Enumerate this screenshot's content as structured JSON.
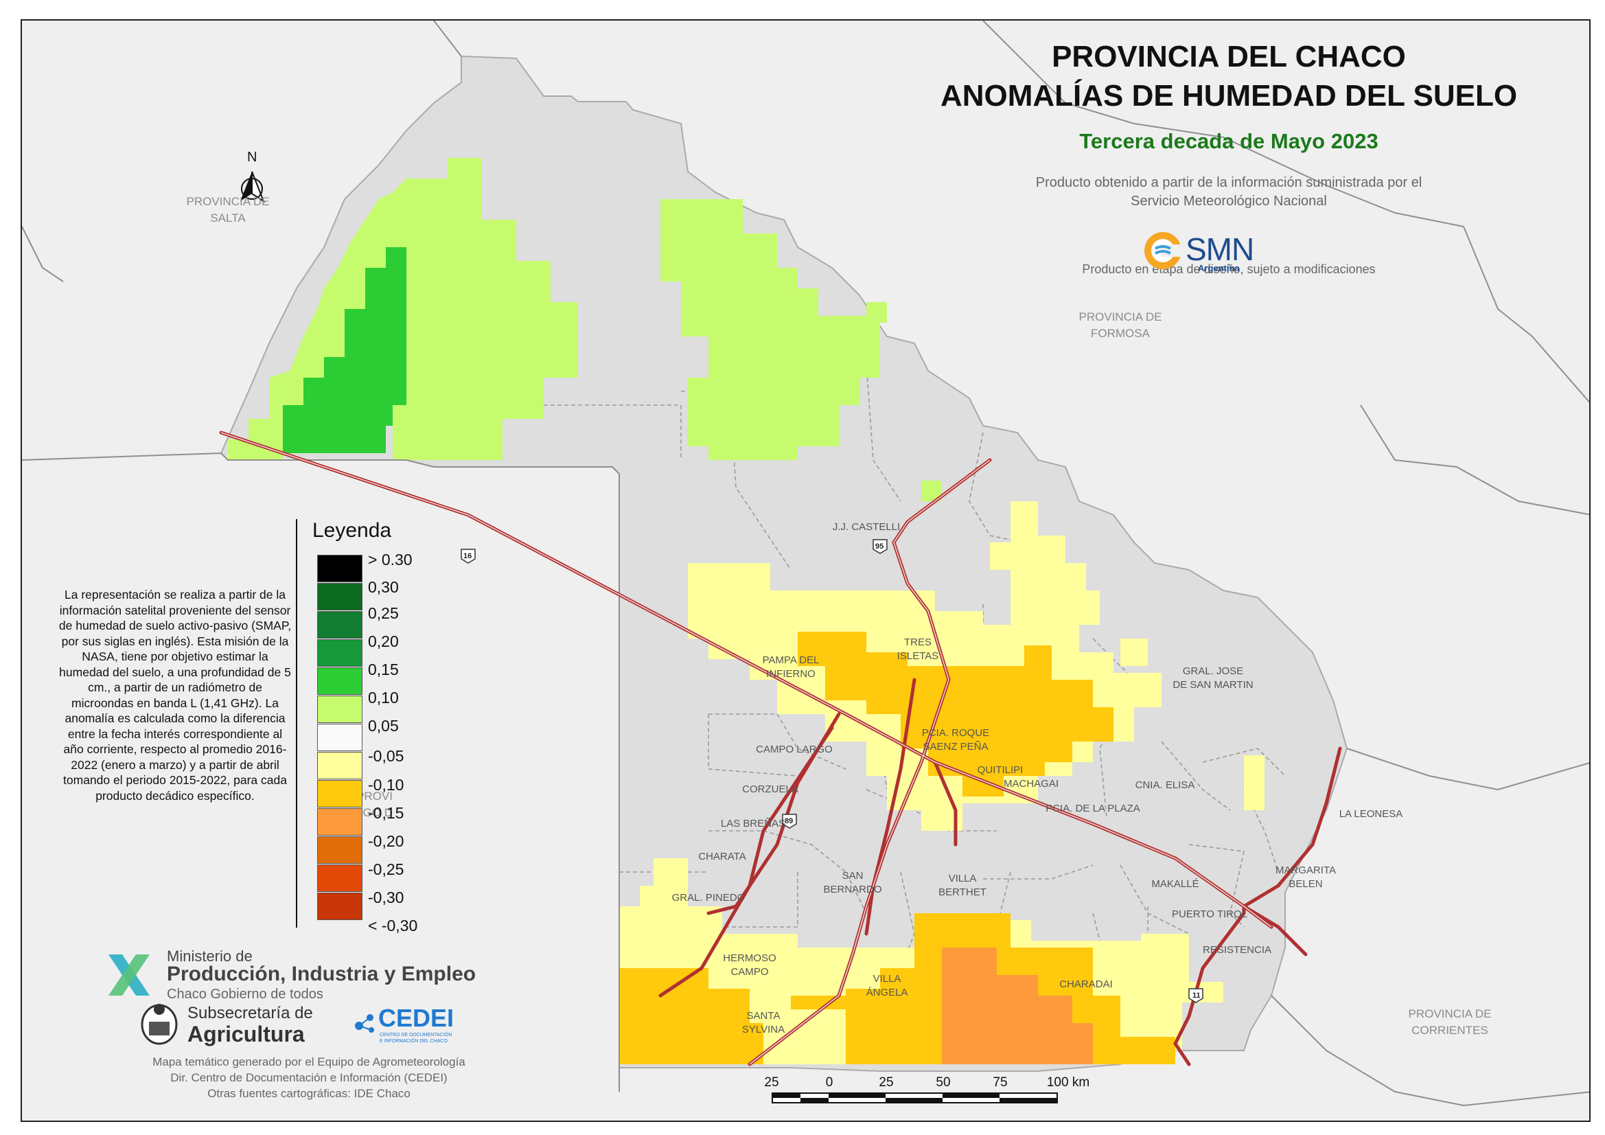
{
  "title": {
    "line1": "PROVINCIA DEL CHACO",
    "line2": "ANOMALÍAS DE HUMEDAD DEL SUELO",
    "subtitle": "Tercera decada de Mayo 2023"
  },
  "source": {
    "line1": "Producto obtenido a partir de la información suministrada por el",
    "line2": "Servicio Meteorológico Nacional",
    "disclaimer": "Producto en etapa de diseño, sujeto a modificaciones"
  },
  "smn_logo": {
    "name": "SMN",
    "country": "Argentina"
  },
  "north_arrow": "N",
  "neighbor_provinces": [
    {
      "line1": "PROVINCIA DE",
      "line2": "SALTA"
    },
    {
      "line1": "PROVINCIA DE",
      "line2": "FORMOSA"
    },
    {
      "line1": "PROVINCIA DE",
      "line2": "CORRIENTES"
    },
    {
      "line1": "PROVI",
      "line2": "STIAGO D"
    }
  ],
  "localities": [
    {
      "line1": "J.J. CASTELLI",
      "line2": ""
    },
    {
      "line1": "TRES",
      "line2": "ISLETAS"
    },
    {
      "line1": "PAMPA DEL",
      "line2": "INFIERNO"
    },
    {
      "line1": "GRAL. JOSE",
      "line2": "DE SAN MARTIN"
    },
    {
      "line1": "PCIA. ROQUE",
      "line2": "SAENZ PEÑA"
    },
    {
      "line1": "CAMPO LARGO",
      "line2": ""
    },
    {
      "line1": "QUITILIPI",
      "line2": ""
    },
    {
      "line1": "MACHAGAI",
      "line2": ""
    },
    {
      "line1": "CNIA. ELISA",
      "line2": ""
    },
    {
      "line1": "CORZUELA",
      "line2": ""
    },
    {
      "line1": "PCIA. DE LA PLAZA",
      "line2": ""
    },
    {
      "line1": "LAS BREÑAS",
      "line2": ""
    },
    {
      "line1": "LA LEONESA",
      "line2": ""
    },
    {
      "line1": "CHARATA",
      "line2": ""
    },
    {
      "line1": "SAN",
      "line2": "BERNARDO"
    },
    {
      "line1": "VILLA",
      "line2": "BERTHET"
    },
    {
      "line1": "MARGARITA",
      "line2": "BELEN"
    },
    {
      "line1": "MAKALLÉ",
      "line2": ""
    },
    {
      "line1": "GRAL. PINEDO",
      "line2": ""
    },
    {
      "line1": "PUERTO TIROL",
      "line2": ""
    },
    {
      "line1": "RESISTENCIA",
      "line2": ""
    },
    {
      "line1": "HERMOSO",
      "line2": "CAMPO"
    },
    {
      "line1": "VILLA",
      "line2": "ÁNGELA"
    },
    {
      "line1": "CHARADAI",
      "line2": ""
    },
    {
      "line1": "SANTA",
      "line2": "SYLVINA"
    }
  ],
  "routes": [
    "16",
    "95",
    "89",
    "11"
  ],
  "legend": {
    "title": "Leyenda",
    "classes": [
      {
        "label": "> 0.30",
        "color": "#000000"
      },
      {
        "label": "0,30",
        "color": "#0b6b1f"
      },
      {
        "label": "0,25",
        "color": "#127c30"
      },
      {
        "label": "0,20",
        "color": "#16993a"
      },
      {
        "label": "0,15",
        "color": "#2ccc34"
      },
      {
        "label": "0,10",
        "color": "#c6fb6e"
      },
      {
        "label": "0,05",
        "color": "#fafafa"
      },
      {
        "label": "-0,05",
        "color": "#ffff9e"
      },
      {
        "label": "-0,10",
        "color": "#ffc90d"
      },
      {
        "label": "-0,15",
        "color": "#fd9a3c"
      },
      {
        "label": "-0,20",
        "color": "#e06d0a"
      },
      {
        "label": "-0,25",
        "color": "#e34a07"
      },
      {
        "label": "-0,30",
        "color": "#c93607"
      }
    ],
    "last_label": "< -0,30"
  },
  "notes": "La representación se realiza a partir de la información satelital proveniente del sensor de humedad de suelo activo-pasivo (SMAP, por sus siglas en inglés). Esta misión de la NASA, tiene por objetivo estimar la humedad del suelo, a una profundidad de 5 cm., a partir de un radiómetro de microondas en banda L (1,41 GHz). La anomalía es calculada como la diferencia entre la fecha interés correspondiente al año corriente, respecto al promedio 2016- 2022 (enero a marzo) y a partir de abril tomando el periodo 2015-2022, para cada producto decádico específico.",
  "logos": {
    "ministry_line1": "Ministerio de",
    "ministry_line2": "Producción, Industria y Empleo",
    "ministry_line3": "Chaco Gobierno de todos",
    "subsecretaria_line1": "Subsecretaría de",
    "subsecretaria_line2": "Agricultura",
    "cedei": "CEDEI",
    "cedei_sub1": "CENTRO DE DOCUMENTACIÓN",
    "cedei_sub2": "E INFORMACIÓN DEL CHACO"
  },
  "credits": {
    "line1": "Mapa temático generado por el Equipo de Agrometeorología",
    "line2": "Dir. Centro de Documentación e Información (CEDEI)",
    "line3": "Otras fuentes cartográficas: IDE Chaco"
  },
  "scale_bar": {
    "labels": [
      "25",
      "0",
      "25",
      "50",
      "75",
      "100 km"
    ]
  }
}
